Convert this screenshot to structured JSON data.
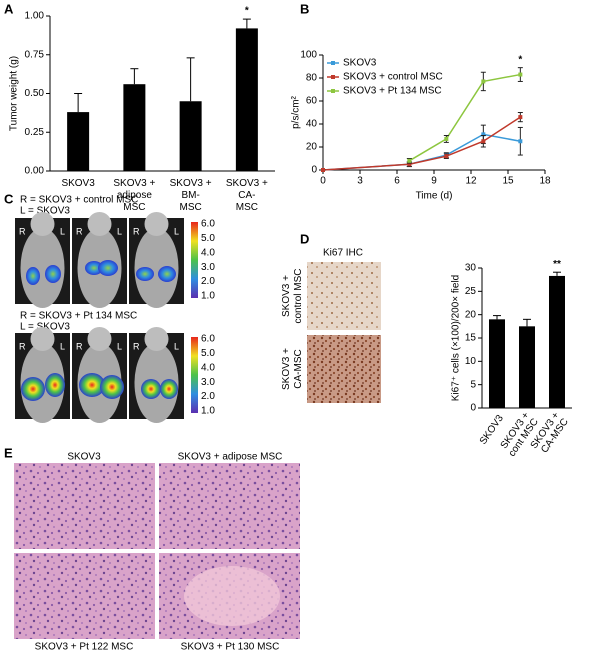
{
  "panel_labels": [
    "A",
    "B",
    "C",
    "D",
    "E"
  ],
  "chart_data": [
    {
      "type": "bar",
      "ylabel": "Tumor weight (g)",
      "categories": [
        [
          "SKOV3"
        ],
        [
          "SKOV3 +",
          "adipose",
          "MSC"
        ],
        [
          "SKOV3 +",
          "BM-",
          "MSC"
        ],
        [
          "SKOV3 +",
          "CA-",
          "MSC"
        ]
      ],
      "values": [
        0.38,
        0.56,
        0.45,
        0.92
      ],
      "errors": [
        0.12,
        0.1,
        0.28,
        0.06
      ],
      "color": "#000000",
      "ylim": [
        0,
        1
      ],
      "yticks": [
        {
          "value": 0,
          "label": "0.00"
        },
        {
          "value": 0.25,
          "label": "0.25"
        },
        {
          "value": 0.5,
          "label": "0.50"
        },
        {
          "value": 0.75,
          "label": "0.75"
        },
        {
          "value": 1,
          "label": "1.00"
        }
      ],
      "annotation": "*"
    },
    {
      "type": "line",
      "xlabel": "Time (d)",
      "ylabel": "p/s/cm²",
      "x": [
        0,
        7,
        10,
        13,
        16
      ],
      "series": [
        {
          "name": "SKOV3",
          "color": "#3a9ad9",
          "values": [
            0,
            5,
            13,
            31,
            25
          ],
          "errors": [
            0,
            2,
            2,
            8,
            12
          ]
        },
        {
          "name": "SKOV3 + control MSC",
          "color": "#c0392b",
          "values": [
            0,
            5,
            12,
            25,
            46
          ],
          "errors": [
            0,
            2,
            2,
            5,
            4
          ]
        },
        {
          "name": "SKOV3 + Pt 134 MSC",
          "color": "#8dc63f",
          "values": [
            null,
            8,
            27,
            77,
            83
          ],
          "errors": [
            null,
            2,
            3,
            8,
            6
          ]
        }
      ],
      "xlim": [
        0,
        18
      ],
      "xticks": [
        0,
        3,
        6,
        9,
        12,
        15,
        18
      ],
      "ylim": [
        0,
        100
      ],
      "yticks": [
        0,
        20,
        40,
        60,
        80,
        100
      ],
      "annotation": "*"
    },
    {
      "type": "bar",
      "ylabel": "Ki67⁺ cells (×100)/200× field",
      "categories": [
        [
          "SKOV3"
        ],
        [
          "SKOV3 +",
          "cont MSC"
        ],
        [
          "SKOV3 +",
          "CA-MSC"
        ]
      ],
      "values": [
        19,
        17.5,
        28.3
      ],
      "errors": [
        0.8,
        1.5,
        0.8
      ],
      "color": "#000000",
      "ylim": [
        0,
        30
      ],
      "yticks": [
        0,
        5,
        10,
        15,
        20,
        25,
        30
      ],
      "annotation": "**"
    }
  ],
  "panel_c": {
    "rows": [
      {
        "labels": [
          "R = SKOV3 + control MSC",
          "L = SKOV3"
        ]
      },
      {
        "labels": [
          "R = SKOV3 + Pt 134 MSC",
          "L = SKOV3"
        ]
      }
    ],
    "side_labels": [
      "R",
      "L"
    ],
    "colorbar_ticks": [
      "6.0",
      "5.0",
      "4.0",
      "3.0",
      "2.0",
      "1.0"
    ]
  },
  "panel_d": {
    "title": "Ki67 IHC",
    "row_labels": [
      [
        "SKOV3 +",
        "control MSC"
      ],
      [
        "SKOV3 +",
        "CA-MSC"
      ]
    ]
  },
  "panel_e": {
    "captions": [
      "SKOV3",
      "SKOV3 + adipose MSC",
      "SKOV3 + Pt 122 MSC",
      "SKOV3 + Pt 130 MSC"
    ]
  }
}
